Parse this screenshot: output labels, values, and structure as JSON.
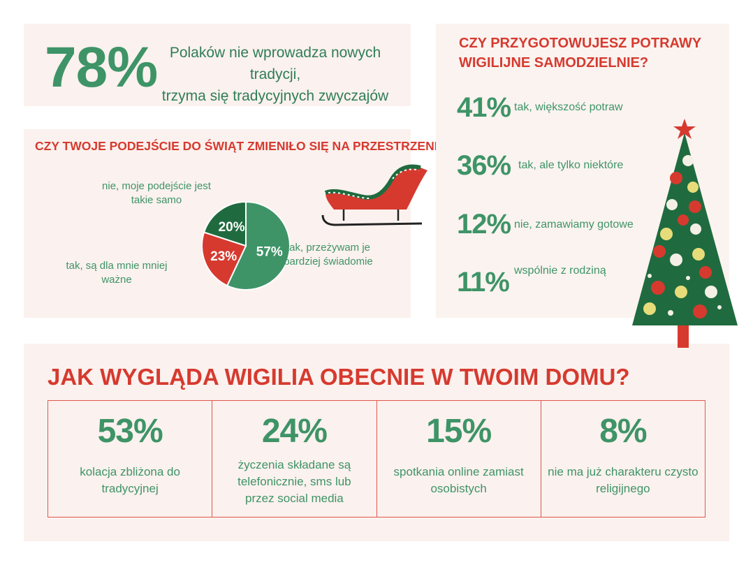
{
  "colors": {
    "green": "#3e9467",
    "dark_green": "#1f6b3f",
    "red": "#d63a2f",
    "panel": "#fbf1ee"
  },
  "intro": {
    "percent": "78%",
    "text_line1": "Polaków nie wprowadza nowych tradycji,",
    "text_line2": "trzyma się tradycyjnych zwyczajów"
  },
  "approach": {
    "question": "CZY TWOJE PODEJŚCIE DO ŚWIĄT ZMIENIŁO SIĘ NA PRZESTRZENI LAT?"
  },
  "cooking": {
    "question_line1": "CZY PRZYGOTOWUJESZ POTRAWY",
    "question_line2": "WIGILIJNE SAMODZIELNIE?",
    "rows": [
      {
        "percent": "41%",
        "label": "tak, większość potraw"
      },
      {
        "percent": "36%",
        "label": "tak, ale tylko niektóre"
      },
      {
        "percent": "12%",
        "label": "nie, zamawiamy gotowe"
      },
      {
        "percent": "11%",
        "label": "wspólnie z rodziną"
      }
    ]
  },
  "eve": {
    "question": "JAK WYGLĄDA WIGILIA OBECNIE W TWOIM DOMU?",
    "cells": [
      {
        "percent": "53%",
        "label": "kolacja zbliżona do tradycyjnej"
      },
      {
        "percent": "24%",
        "label": "życzenia składane są telefonicznie, sms lub przez social media"
      },
      {
        "percent": "15%",
        "label": "spotkania online zamiast osobistych"
      },
      {
        "percent": "8%",
        "label": "nie ma już charakteru czysto religijnego"
      }
    ]
  },
  "chart_data": {
    "type": "pie",
    "title": "CZY TWOJE PODEJŚCIE DO ŚWIĄT ZMIENIŁO SIĘ NA PRZESTRZENI LAT?",
    "slices": [
      {
        "label_line1": "tak, przeżywam je",
        "label_line2": "bardziej świadomie",
        "value": 57,
        "value_label": "57%",
        "color": "#3e9467"
      },
      {
        "label_line1": "tak, są dla mnie mniej",
        "label_line2": "ważne",
        "value": 23,
        "value_label": "23%",
        "color": "#d63a2f"
      },
      {
        "label_line1": "nie, moje podejście jest",
        "label_line2": "takie samo",
        "value": 20,
        "value_label": "20%",
        "color": "#1f6b3f"
      }
    ],
    "start_angle_deg": 0,
    "legend": "none"
  }
}
